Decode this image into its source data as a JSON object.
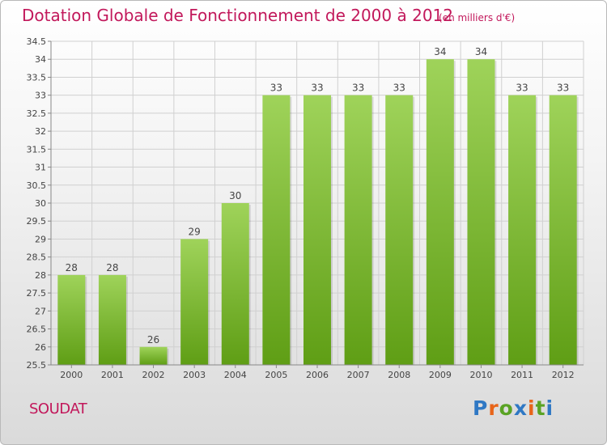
{
  "chart_data": {
    "type": "bar",
    "title": "Dotation Globale de Fonctionnement de 2000 à 2012",
    "subtitle": "(en milliers d'€)",
    "categories": [
      "2000",
      "2001",
      "2002",
      "2003",
      "2004",
      "2005",
      "2006",
      "2007",
      "2008",
      "2009",
      "2010",
      "2011",
      "2012"
    ],
    "values": [
      28,
      28,
      26,
      29,
      30,
      33,
      33,
      33,
      33,
      34,
      34,
      33,
      33
    ],
    "data_labels": [
      "28",
      "28",
      "26",
      "29",
      "30",
      "33",
      "33",
      "33",
      "33",
      "34",
      "34",
      "33",
      "33"
    ],
    "ylim": [
      25.5,
      34.5
    ],
    "yticks": [
      25.5,
      26,
      26.5,
      27,
      27.5,
      28,
      28.5,
      29,
      29.5,
      30,
      30.5,
      31,
      31.5,
      32,
      32.5,
      33,
      33.5,
      34,
      34.5
    ],
    "ytick_labels": [
      "25.5",
      "26",
      "26.5",
      "27",
      "27.5",
      "28",
      "28.5",
      "29",
      "29.5",
      "30",
      "30.5",
      "31",
      "31.5",
      "32",
      "32.5",
      "33",
      "33.5",
      "34",
      "34.5"
    ],
    "grid": true,
    "bar_color_top": "#9fd35a",
    "bar_color_bottom": "#5f9e15"
  },
  "footer": {
    "town": "SOUDAT",
    "logo": "Proxiti"
  }
}
